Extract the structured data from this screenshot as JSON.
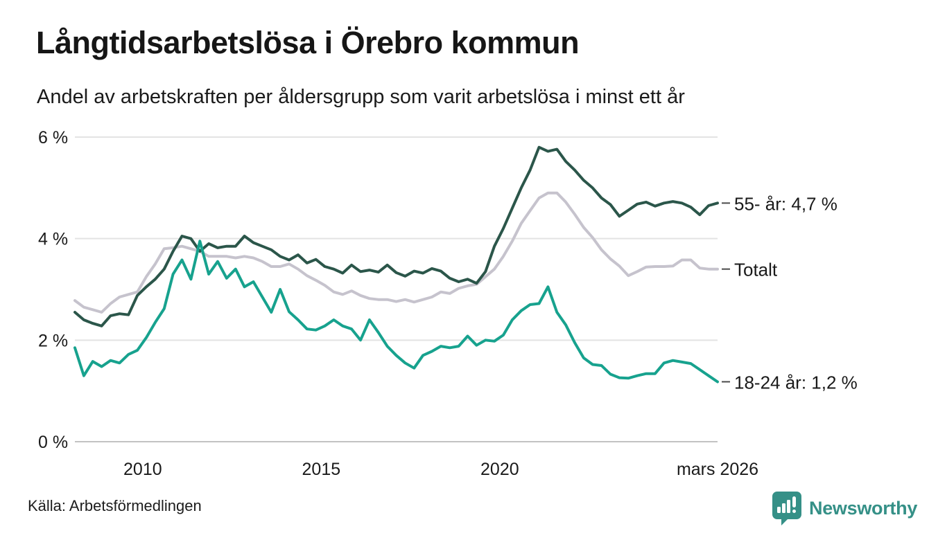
{
  "header": {
    "title": "Långtidsarbetslösa i Örebro kommun",
    "subtitle": "Andel av arbetskraften per åldersgrupp som varit arbetslösa i minst ett år"
  },
  "footer": {
    "source": "Källa: Arbetsförmedlingen",
    "brand": "Newsworthy"
  },
  "colors": {
    "title_text": "#161616",
    "body_text": "#1a1a1a",
    "gridline": "#e3e3e3",
    "zero_line": "#c2c2c2",
    "connector": "#4a4a4a",
    "brand_teal": "#359087",
    "series_55": "#2b564a",
    "series_total": "#c6c3cd",
    "series_18_24": "#17a28e"
  },
  "chart_data": {
    "type": "line",
    "title": "Långtidsarbetslösa i Örebro kommun",
    "subtitle": "Andel av arbetskraften per åldersgrupp som varit arbetslösa i minst ett år",
    "unit": "%",
    "grid": true,
    "legend_position": "end-of-line-labels",
    "x_axis": {
      "range": [
        2008.1,
        2026.1
      ],
      "ticks": [
        {
          "label": "2010",
          "t": 2010
        },
        {
          "label": "2015",
          "t": 2015
        },
        {
          "label": "2020",
          "t": 2020
        },
        {
          "label": "mars 2026",
          "t": 2026.1
        }
      ]
    },
    "y_axis": {
      "range": [
        0,
        6
      ],
      "ticks": [
        {
          "label": "0 %",
          "v": 0
        },
        {
          "label": "2 %",
          "v": 2
        },
        {
          "label": "4 %",
          "v": 4
        },
        {
          "label": "6 %",
          "v": 6
        }
      ]
    },
    "series": [
      {
        "id": "total",
        "name": "Totalt",
        "end_label": "Totalt",
        "color": "#c6c3cd",
        "start": 2008.1,
        "step": 0.25,
        "values": [
          2.78,
          2.65,
          2.6,
          2.55,
          2.72,
          2.85,
          2.9,
          2.95,
          3.25,
          3.5,
          3.8,
          3.82,
          3.85,
          3.8,
          3.75,
          3.65,
          3.65,
          3.65,
          3.62,
          3.65,
          3.62,
          3.55,
          3.45,
          3.45,
          3.5,
          3.4,
          3.27,
          3.18,
          3.08,
          2.95,
          2.9,
          2.97,
          2.88,
          2.82,
          2.8,
          2.8,
          2.76,
          2.8,
          2.75,
          2.8,
          2.85,
          2.95,
          2.92,
          3.02,
          3.07,
          3.1,
          3.25,
          3.4,
          3.65,
          3.95,
          4.3,
          4.55,
          4.8,
          4.9,
          4.9,
          4.72,
          4.48,
          4.22,
          4.02,
          3.78,
          3.6,
          3.46,
          3.27,
          3.35,
          3.44,
          3.45,
          3.45,
          3.46,
          3.58,
          3.58,
          3.42,
          3.4,
          3.4
        ]
      },
      {
        "id": "55-plus",
        "name": "55- år",
        "end_label": "55- år: 4,7 %",
        "color": "#2b564a",
        "start": 2008.1,
        "step": 0.25,
        "values": [
          2.55,
          2.4,
          2.33,
          2.28,
          2.48,
          2.52,
          2.5,
          2.88,
          3.05,
          3.2,
          3.4,
          3.75,
          4.05,
          4.0,
          3.75,
          3.9,
          3.82,
          3.85,
          3.85,
          4.05,
          3.92,
          3.85,
          3.78,
          3.65,
          3.58,
          3.68,
          3.52,
          3.59,
          3.45,
          3.4,
          3.32,
          3.48,
          3.35,
          3.38,
          3.34,
          3.48,
          3.33,
          3.26,
          3.36,
          3.32,
          3.41,
          3.36,
          3.22,
          3.15,
          3.2,
          3.12,
          3.35,
          3.85,
          4.2,
          4.6,
          5.0,
          5.35,
          5.8,
          5.72,
          5.76,
          5.52,
          5.35,
          5.15,
          5.0,
          4.8,
          4.67,
          4.44,
          4.56,
          4.68,
          4.72,
          4.64,
          4.7,
          4.73,
          4.7,
          4.62,
          4.47,
          4.65,
          4.7
        ]
      },
      {
        "id": "18-24",
        "name": "18-24 år",
        "end_label": "18-24 år: 1,2 %",
        "color": "#17a28e",
        "start": 2008.1,
        "step": 0.25,
        "values": [
          1.85,
          1.3,
          1.58,
          1.48,
          1.6,
          1.55,
          1.72,
          1.8,
          2.05,
          2.35,
          2.62,
          3.3,
          3.58,
          3.2,
          3.95,
          3.3,
          3.55,
          3.22,
          3.4,
          3.05,
          3.15,
          2.85,
          2.55,
          3.0,
          2.56,
          2.4,
          2.22,
          2.2,
          2.28,
          2.4,
          2.28,
          2.22,
          2.0,
          2.4,
          2.15,
          1.88,
          1.7,
          1.55,
          1.45,
          1.7,
          1.78,
          1.88,
          1.85,
          1.88,
          2.08,
          1.9,
          2.0,
          1.98,
          2.1,
          2.4,
          2.58,
          2.7,
          2.72,
          3.05,
          2.55,
          2.3,
          1.95,
          1.65,
          1.52,
          1.5,
          1.33,
          1.26,
          1.25,
          1.3,
          1.34,
          1.34,
          1.55,
          1.6,
          1.57,
          1.54,
          1.42,
          1.3,
          1.18
        ]
      }
    ]
  }
}
